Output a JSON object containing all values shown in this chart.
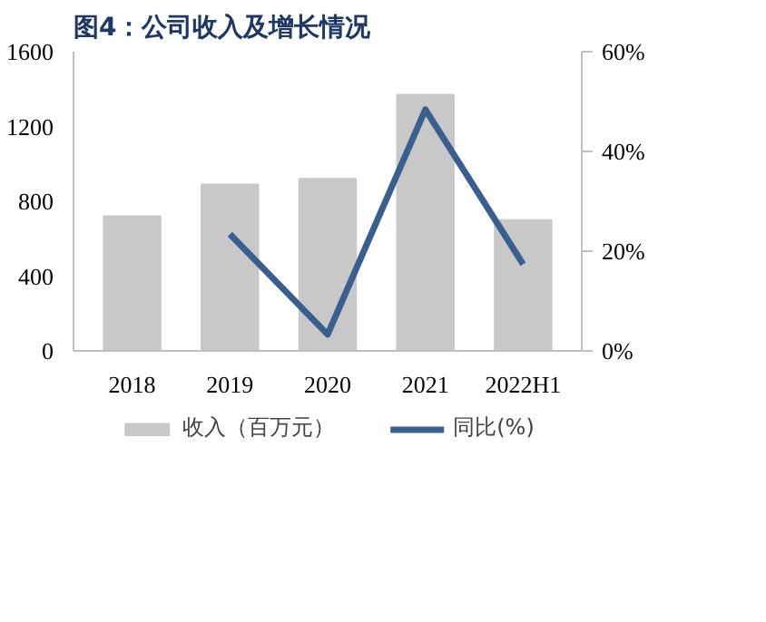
{
  "chart_data": {
    "type": "bar",
    "title": "图4：公司收入及增长情况",
    "categories": [
      "2018",
      "2019",
      "2020",
      "2021",
      "2022H1"
    ],
    "series": [
      {
        "name": "收入（百万元）",
        "color": "#c8c8c8",
        "values": [
          720,
          890,
          920,
          1370,
          700
        ]
      },
      {
        "name": "同比(%)",
        "type": "line",
        "axis": "y2",
        "color": "#3a5f8f",
        "values": [
          null,
          23.4,
          3.3,
          48.4,
          17.4
        ]
      }
    ],
    "ylim": [
      0,
      1600
    ],
    "yticks": [
      0,
      400,
      800,
      1200,
      1600
    ],
    "y2lim": [
      0,
      60
    ],
    "y2ticks": [
      {
        "value": 0,
        "label": "0%"
      },
      {
        "value": 20,
        "label": "20%"
      },
      {
        "value": 40,
        "label": "40%"
      },
      {
        "value": 60,
        "label": "60%"
      }
    ],
    "grid": false,
    "legend": "bottom",
    "marker": "none"
  }
}
